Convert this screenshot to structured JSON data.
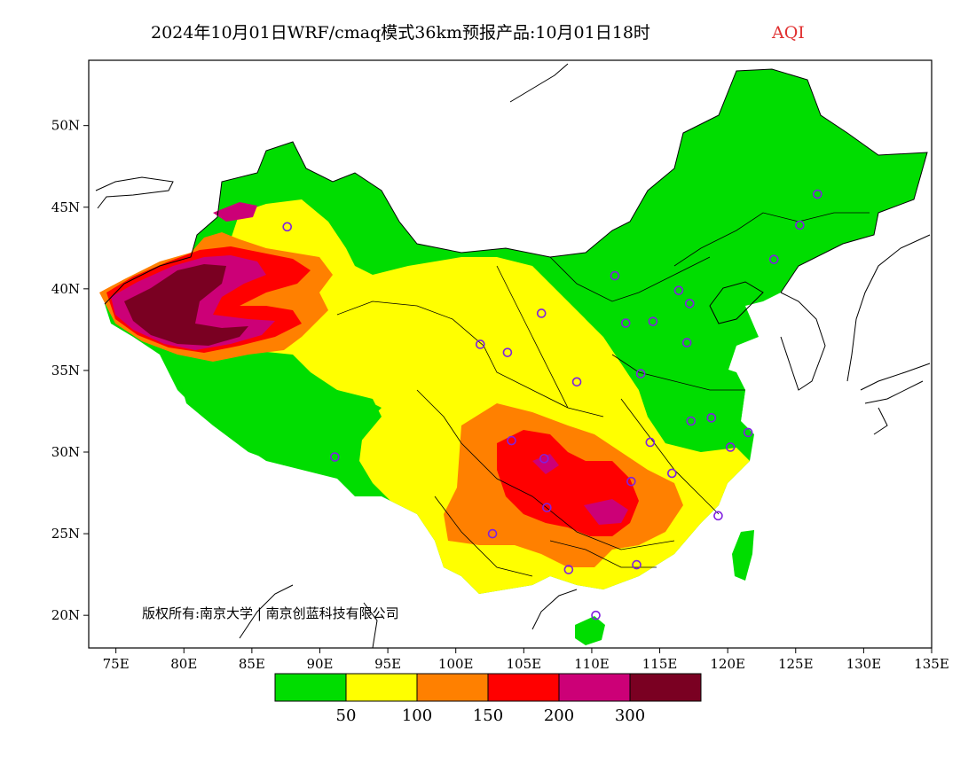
{
  "title": {
    "main": "2024年10月01日WRF/cmaq模式36km预报产品:10月01日18时",
    "variable": "AQI",
    "variable_color": "#e03030"
  },
  "map": {
    "lon_range": [
      73,
      135
    ],
    "lat_range": [
      18,
      54
    ],
    "x_ticks": [
      {
        "lon": 75,
        "label": "75E"
      },
      {
        "lon": 80,
        "label": "80E"
      },
      {
        "lon": 85,
        "label": "85E"
      },
      {
        "lon": 90,
        "label": "90E"
      },
      {
        "lon": 95,
        "label": "95E"
      },
      {
        "lon": 100,
        "label": "100E"
      },
      {
        "lon": 105,
        "label": "105E"
      },
      {
        "lon": 110,
        "label": "110E"
      },
      {
        "lon": 115,
        "label": "115E"
      },
      {
        "lon": 120,
        "label": "120E"
      },
      {
        "lon": 125,
        "label": "125E"
      },
      {
        "lon": 130,
        "label": "130E"
      },
      {
        "lon": 135,
        "label": "135E"
      }
    ],
    "y_ticks": [
      {
        "lat": 20,
        "label": "20N"
      },
      {
        "lat": 25,
        "label": "25N"
      },
      {
        "lat": 30,
        "label": "30N"
      },
      {
        "lat": 35,
        "label": "35N"
      },
      {
        "lat": 40,
        "label": "40N"
      },
      {
        "lat": 45,
        "label": "45N"
      },
      {
        "lat": 50,
        "label": "50N"
      }
    ],
    "copyright": "版权所有:南京大学 | 南京创蓝科技有限公司"
  },
  "legend": {
    "colors": [
      "#00dd00",
      "#ffff00",
      "#ff8000",
      "#ff0000",
      "#cc0077",
      "#7a0022"
    ],
    "labels": [
      "50",
      "100",
      "150",
      "200",
      "300"
    ]
  },
  "colors": {
    "good": "#00dd00",
    "moderate": "#ffff00",
    "unhealthy_sensitive": "#ff8000",
    "unhealthy": "#ff0000",
    "very_unhealthy": "#cc0077",
    "hazardous": "#7a0022",
    "station_marker": "#8020e0"
  },
  "stations": [
    {
      "lon": 87.6,
      "lat": 43.8
    },
    {
      "lon": 126.6,
      "lat": 45.8
    },
    {
      "lon": 125.3,
      "lat": 43.9
    },
    {
      "lon": 123.4,
      "lat": 41.8
    },
    {
      "lon": 111.7,
      "lat": 40.8
    },
    {
      "lon": 116.4,
      "lat": 39.9
    },
    {
      "lon": 117.2,
      "lat": 39.1
    },
    {
      "lon": 112.5,
      "lat": 37.9
    },
    {
      "lon": 114.5,
      "lat": 38.0
    },
    {
      "lon": 106.3,
      "lat": 38.5
    },
    {
      "lon": 103.8,
      "lat": 36.1
    },
    {
      "lon": 101.8,
      "lat": 36.6
    },
    {
      "lon": 117.0,
      "lat": 36.7
    },
    {
      "lon": 108.9,
      "lat": 34.3
    },
    {
      "lon": 113.6,
      "lat": 34.8
    },
    {
      "lon": 117.3,
      "lat": 31.9
    },
    {
      "lon": 118.8,
      "lat": 32.1
    },
    {
      "lon": 114.3,
      "lat": 30.6
    },
    {
      "lon": 120.2,
      "lat": 30.3
    },
    {
      "lon": 121.5,
      "lat": 31.2
    },
    {
      "lon": 104.1,
      "lat": 30.7
    },
    {
      "lon": 106.5,
      "lat": 29.6
    },
    {
      "lon": 112.9,
      "lat": 28.2
    },
    {
      "lon": 115.9,
      "lat": 28.7
    },
    {
      "lon": 106.7,
      "lat": 26.6
    },
    {
      "lon": 119.3,
      "lat": 26.1
    },
    {
      "lon": 102.7,
      "lat": 25.0
    },
    {
      "lon": 108.3,
      "lat": 22.8
    },
    {
      "lon": 113.3,
      "lat": 23.1
    },
    {
      "lon": 110.3,
      "lat": 20.0
    },
    {
      "lon": 91.1,
      "lat": 29.7
    }
  ]
}
